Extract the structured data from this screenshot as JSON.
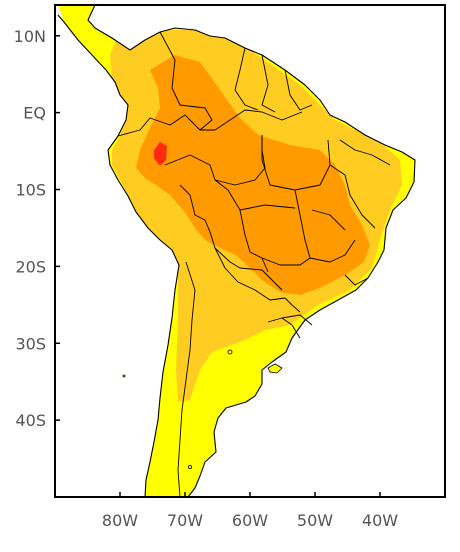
{
  "map": {
    "lat_labels": [
      "10N",
      "EQ",
      "10S",
      "20S",
      "30S",
      "40S"
    ],
    "lon_labels": [
      "80W",
      "70W",
      "60W",
      "50W",
      "40W"
    ],
    "lat_values": [
      10,
      0,
      -10,
      -20,
      -30,
      -40
    ],
    "lon_values": [
      -80,
      -70,
      -60,
      -50,
      -40
    ],
    "lon_range": [
      -90,
      -30
    ],
    "lat_range": [
      -50,
      14
    ],
    "colors": {
      "ocean": "#ffffff",
      "land_low": "#ffff00",
      "level_1": "#ffcc22",
      "level_2": "#ff9a00",
      "level_3": "#ff2a10",
      "frame": "#000000"
    }
  }
}
